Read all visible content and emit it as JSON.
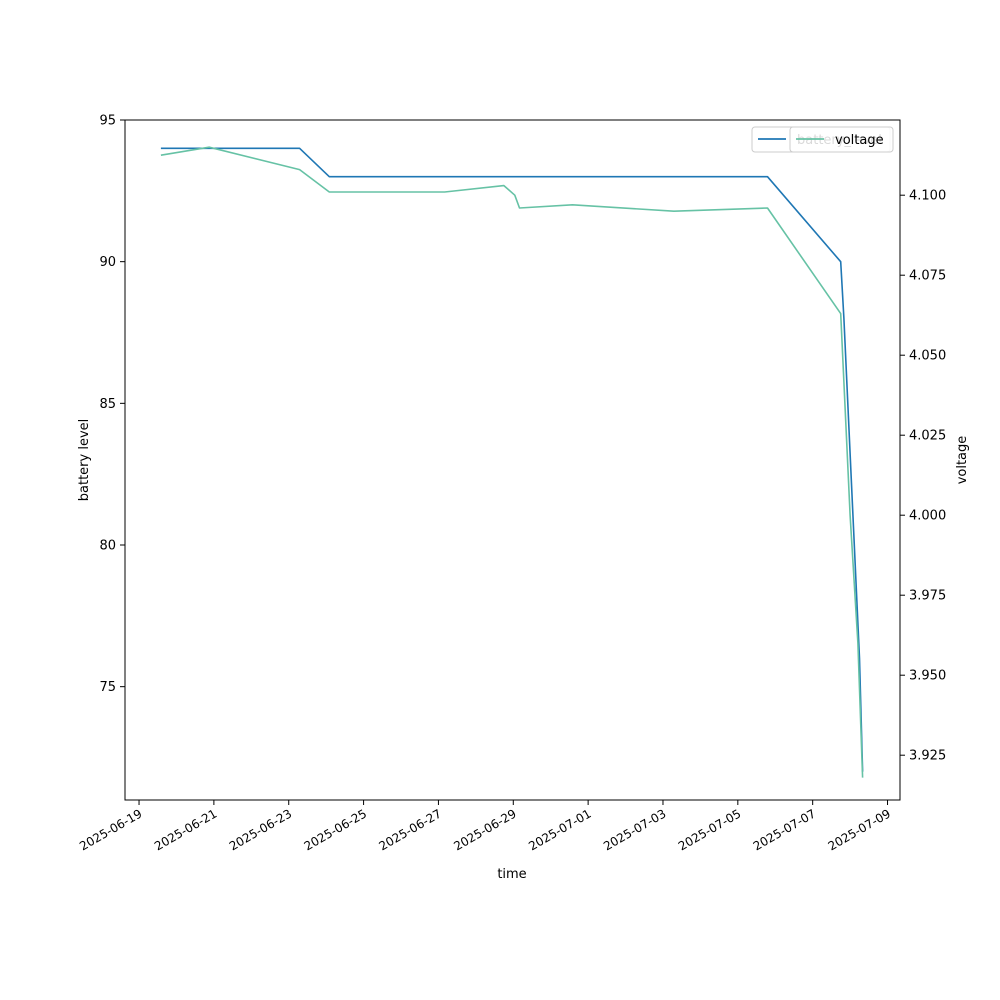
{
  "chart_data": {
    "type": "line",
    "xlabel": "time",
    "ylabel_left": "battery level",
    "ylabel_right": "voltage",
    "grid": false,
    "legend_placement": "top-right",
    "x_range": [
      "2025-06-18 15:00",
      "2025-07-09 08:00"
    ],
    "x_ticks": [
      "2025-06-19",
      "2025-06-21",
      "2025-06-23",
      "2025-06-25",
      "2025-06-27",
      "2025-06-29",
      "2025-07-01",
      "2025-07-03",
      "2025-07-05",
      "2025-07-07",
      "2025-07-09"
    ],
    "y_left_range": [
      71,
      95
    ],
    "y_left_ticks": [
      75,
      80,
      85,
      90,
      95
    ],
    "y_right_range": [
      3.911,
      4.1235
    ],
    "y_right_ticks": [
      "3.925",
      "3.950",
      "3.975",
      "4.000",
      "4.025",
      "4.050",
      "4.075",
      "4.100"
    ],
    "series": [
      {
        "name": "battery_level",
        "axis": "left",
        "color": "#1f77b4",
        "points": [
          [
            "2025-06-19 14:00",
            94
          ],
          [
            "2025-06-20 21:00",
            94
          ],
          [
            "2025-06-23 07:00",
            94
          ],
          [
            "2025-06-24 02:00",
            93
          ],
          [
            "2025-07-05 19:00",
            93
          ],
          [
            "2025-07-07 18:00",
            90
          ],
          [
            "2025-07-07 20:00",
            88
          ],
          [
            "2025-07-08 06:00",
            76
          ],
          [
            "2025-07-08 08:00",
            72
          ]
        ]
      },
      {
        "name": "voltage",
        "axis": "right",
        "color": "#66c2a5",
        "points": [
          [
            "2025-06-19 14:00",
            4.1125
          ],
          [
            "2025-06-20 21:00",
            4.115
          ],
          [
            "2025-06-23 07:00",
            4.108
          ],
          [
            "2025-06-24 02:00",
            4.101
          ],
          [
            "2025-06-27 04:00",
            4.101
          ],
          [
            "2025-06-28 18:00",
            4.103
          ],
          [
            "2025-06-29 01:00",
            4.1
          ],
          [
            "2025-06-29 04:00",
            4.096
          ],
          [
            "2025-06-30 14:00",
            4.097
          ],
          [
            "2025-07-03 07:00",
            4.095
          ],
          [
            "2025-07-05 19:00",
            4.096
          ],
          [
            "2025-07-07 18:00",
            4.063
          ],
          [
            "2025-07-08 00:00",
            4.0
          ],
          [
            "2025-07-08 05:00",
            3.96
          ],
          [
            "2025-07-08 08:00",
            3.918
          ]
        ]
      }
    ],
    "legends": [
      {
        "label": "battery_level",
        "color": "#1f77b4"
      },
      {
        "label": "voltage",
        "color": "#66c2a5"
      }
    ]
  }
}
